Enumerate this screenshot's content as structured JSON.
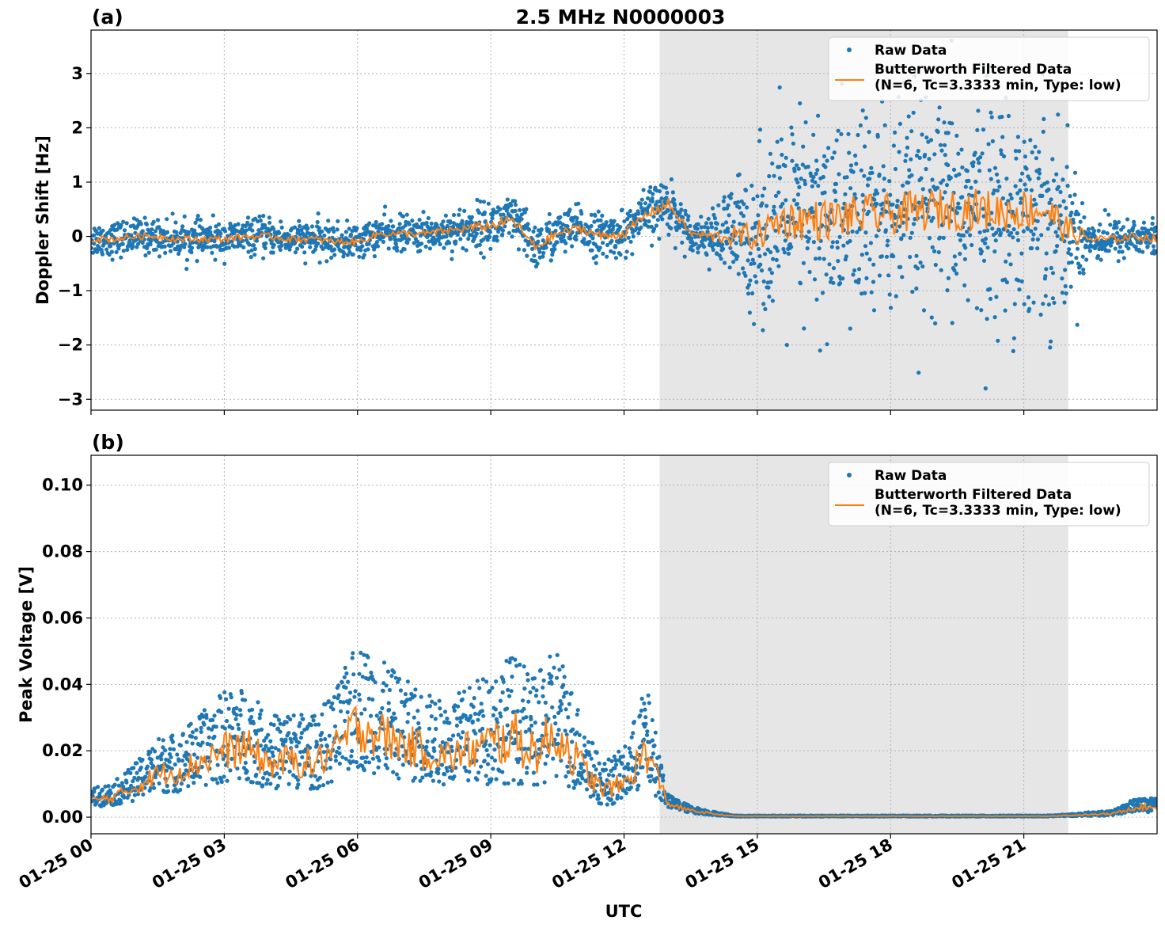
{
  "colors": {
    "raw": "#1f77b4",
    "filtered": "#ff7f0e",
    "shade": "#e6e6e6",
    "grid": "#b0b0b0"
  },
  "figure": {
    "title": "2.5 MHz N0000003",
    "xlabel": "UTC"
  },
  "shade_range": {
    "start_hour": 12.8,
    "end_hour": 22.0
  },
  "legend": {
    "raw_label": "Raw Data",
    "filtered_label_line1": "Butterworth Filtered Data",
    "filtered_label_line2": "(N=6, Tc=3.3333 min, Type: low)"
  },
  "x_ticks": [
    "01-25 00",
    "01-25 03",
    "01-25 06",
    "01-25 09",
    "01-25 12",
    "01-25 15",
    "01-25 18",
    "01-25 21"
  ],
  "chart_data": [
    {
      "type": "scatter",
      "panel_label": "(a)",
      "ylabel": "Doppler Shift [Hz]",
      "xlim_hours": [
        0,
        24
      ],
      "ylim": [
        -3.2,
        3.8
      ],
      "y_ticks": [
        "3",
        "2",
        "1",
        "0",
        "−1",
        "−2",
        "−3"
      ],
      "y_tick_values": [
        3,
        2,
        1,
        0,
        -1,
        -2,
        -3
      ],
      "grid": true,
      "legend_position": "top-right",
      "series": [
        {
          "name": "Raw Data",
          "style": "dots",
          "x_hours": [
            0.0,
            0.5,
            1.0,
            1.5,
            2.0,
            2.5,
            3.0,
            3.5,
            4.0,
            4.5,
            5.0,
            5.5,
            6.0,
            6.5,
            7.0,
            7.5,
            8.0,
            8.5,
            9.0,
            9.5,
            10.0,
            10.5,
            11.0,
            11.5,
            12.0,
            12.5,
            13.0,
            13.5,
            14.0,
            14.5,
            15.0,
            15.5,
            16.0,
            16.5,
            17.0,
            17.5,
            18.0,
            18.5,
            19.0,
            19.5,
            20.0,
            20.5,
            21.0,
            21.5,
            22.0,
            22.5,
            23.0,
            23.5,
            24.0
          ],
          "center": [
            -0.05,
            -0.05,
            0.0,
            0.0,
            -0.05,
            -0.05,
            -0.05,
            0.0,
            0.0,
            -0.05,
            -0.05,
            -0.1,
            -0.1,
            0.05,
            0.05,
            0.05,
            0.1,
            0.15,
            0.2,
            0.3,
            -0.2,
            0.05,
            0.15,
            0.0,
            0.05,
            0.4,
            0.6,
            0.05,
            0.0,
            0.0,
            0.0,
            0.3,
            0.3,
            0.3,
            0.35,
            0.4,
            0.4,
            0.45,
            0.5,
            0.5,
            0.5,
            0.45,
            0.5,
            0.5,
            0.1,
            -0.05,
            -0.05,
            0.0,
            -0.05
          ],
          "spread": [
            0.35,
            0.35,
            0.35,
            0.35,
            0.35,
            0.35,
            0.35,
            0.35,
            0.35,
            0.35,
            0.35,
            0.35,
            0.35,
            0.35,
            0.35,
            0.35,
            0.4,
            0.45,
            0.5,
            0.5,
            0.5,
            0.45,
            0.45,
            0.45,
            0.45,
            0.5,
            0.6,
            0.3,
            0.5,
            1.2,
            1.6,
            2.0,
            2.2,
            2.2,
            2.2,
            2.2,
            2.2,
            2.2,
            2.2,
            2.2,
            2.2,
            2.2,
            2.2,
            2.2,
            1.5,
            0.5,
            0.4,
            0.4,
            0.4
          ]
        },
        {
          "name": "Butterworth Filtered Data (N=6, Tc=3.3333 min, Type: low)",
          "style": "line",
          "x_hours": [
            0.0,
            0.5,
            1.0,
            1.5,
            2.0,
            2.5,
            3.0,
            3.5,
            4.0,
            4.5,
            5.0,
            5.5,
            6.0,
            6.5,
            7.0,
            7.5,
            8.0,
            8.5,
            9.0,
            9.5,
            10.0,
            10.5,
            11.0,
            11.5,
            12.0,
            12.5,
            13.0,
            13.5,
            14.0,
            14.5,
            15.0,
            15.5,
            16.0,
            16.5,
            17.0,
            17.5,
            18.0,
            18.5,
            19.0,
            19.5,
            20.0,
            20.5,
            21.0,
            21.5,
            22.0,
            22.5,
            23.0,
            23.5,
            24.0
          ],
          "values": [
            -0.05,
            -0.05,
            0.0,
            0.0,
            -0.05,
            -0.05,
            -0.05,
            0.0,
            0.0,
            -0.05,
            -0.05,
            -0.1,
            -0.1,
            0.05,
            0.05,
            0.05,
            0.1,
            0.15,
            0.2,
            0.3,
            -0.2,
            0.05,
            0.15,
            0.0,
            0.05,
            0.4,
            0.6,
            0.05,
            0.0,
            0.0,
            0.0,
            0.3,
            0.3,
            0.3,
            0.35,
            0.4,
            0.4,
            0.45,
            0.5,
            0.5,
            0.5,
            0.45,
            0.5,
            0.5,
            0.1,
            -0.05,
            -0.05,
            0.0,
            -0.05
          ]
        }
      ]
    },
    {
      "type": "scatter",
      "panel_label": "(b)",
      "ylabel": "Peak Voltage [V]",
      "xlim_hours": [
        0,
        24
      ],
      "ylim": [
        -0.005,
        0.109
      ],
      "y_ticks": [
        "0.10",
        "0.08",
        "0.06",
        "0.04",
        "0.02",
        "0.00"
      ],
      "y_tick_values": [
        0.1,
        0.08,
        0.06,
        0.04,
        0.02,
        0.0
      ],
      "grid": true,
      "legend_position": "top-right",
      "series": [
        {
          "name": "Raw Data",
          "style": "dots",
          "x_hours": [
            0.0,
            0.5,
            1.0,
            1.5,
            2.0,
            2.5,
            3.0,
            3.5,
            4.0,
            4.5,
            5.0,
            5.5,
            6.0,
            6.5,
            7.0,
            7.5,
            8.0,
            8.5,
            9.0,
            9.5,
            10.0,
            10.5,
            11.0,
            11.5,
            12.0,
            12.5,
            13.0,
            13.5,
            14.0,
            14.5,
            15.0,
            15.5,
            16.0,
            16.5,
            17.0,
            17.5,
            18.0,
            18.5,
            19.0,
            19.5,
            20.0,
            20.5,
            21.0,
            21.5,
            22.0,
            22.5,
            23.0,
            23.5,
            24.0
          ],
          "center": [
            0.005,
            0.006,
            0.009,
            0.013,
            0.014,
            0.017,
            0.02,
            0.021,
            0.016,
            0.017,
            0.016,
            0.02,
            0.028,
            0.025,
            0.022,
            0.02,
            0.018,
            0.02,
            0.022,
            0.024,
            0.02,
            0.025,
            0.016,
            0.008,
            0.01,
            0.02,
            0.004,
            0.002,
            0.001,
            0.0003,
            0.0003,
            0.0003,
            0.0003,
            0.0003,
            0.0003,
            0.0003,
            0.0003,
            0.0003,
            0.0003,
            0.0003,
            0.0003,
            0.0003,
            0.0003,
            0.0003,
            0.0005,
            0.0008,
            0.001,
            0.003,
            0.003
          ],
          "spread": [
            0.004,
            0.005,
            0.008,
            0.012,
            0.013,
            0.016,
            0.02,
            0.02,
            0.016,
            0.017,
            0.016,
            0.02,
            0.028,
            0.025,
            0.022,
            0.02,
            0.018,
            0.022,
            0.025,
            0.028,
            0.024,
            0.03,
            0.018,
            0.009,
            0.012,
            0.022,
            0.003,
            0.0015,
            0.0008,
            0.0002,
            0.0002,
            0.0002,
            0.0002,
            0.0002,
            0.0002,
            0.0002,
            0.0002,
            0.0002,
            0.0002,
            0.0002,
            0.0002,
            0.0002,
            0.0002,
            0.0002,
            0.0004,
            0.0008,
            0.001,
            0.003,
            0.003
          ]
        },
        {
          "name": "Butterworth Filtered Data (N=6, Tc=3.3333 min, Type: low)",
          "style": "line",
          "x_hours": [
            0.0,
            0.5,
            1.0,
            1.5,
            2.0,
            2.5,
            3.0,
            3.5,
            4.0,
            4.5,
            5.0,
            5.5,
            6.0,
            6.5,
            7.0,
            7.5,
            8.0,
            8.5,
            9.0,
            9.5,
            10.0,
            10.5,
            11.0,
            11.5,
            12.0,
            12.5,
            13.0,
            13.5,
            14.0,
            14.5,
            15.0,
            15.5,
            16.0,
            16.5,
            17.0,
            17.5,
            18.0,
            18.5,
            19.0,
            19.5,
            20.0,
            20.5,
            21.0,
            21.5,
            22.0,
            22.5,
            23.0,
            23.5,
            24.0
          ],
          "values": [
            0.005,
            0.006,
            0.009,
            0.013,
            0.014,
            0.017,
            0.02,
            0.021,
            0.016,
            0.017,
            0.016,
            0.02,
            0.028,
            0.025,
            0.022,
            0.02,
            0.018,
            0.02,
            0.022,
            0.024,
            0.02,
            0.025,
            0.016,
            0.008,
            0.01,
            0.02,
            0.004,
            0.002,
            0.001,
            0.0003,
            0.0003,
            0.0003,
            0.0003,
            0.0003,
            0.0003,
            0.0003,
            0.0003,
            0.0003,
            0.0003,
            0.0003,
            0.0003,
            0.0003,
            0.0003,
            0.0003,
            0.0005,
            0.0008,
            0.001,
            0.003,
            0.003
          ]
        }
      ]
    }
  ]
}
